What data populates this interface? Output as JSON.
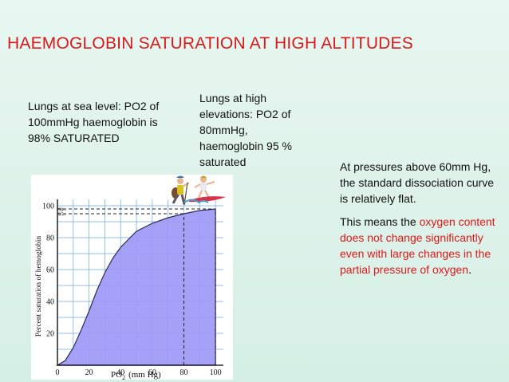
{
  "slide": {
    "title": "HAEMOGLOBIN SATURATION AT HIGH ALTITUDES",
    "note_sea_level": "Lungs at sea level: PO2 of 100mmHg haemoglobin is 98% SATURATED",
    "note_high_elevation": "Lungs at high elevations: PO2 of 80mmHg, haemoglobin 95 % saturated",
    "right_text": {
      "paragraph1": "At pressures above 60mm Hg, the standard dissociation curve is relatively flat.",
      "p2_start": "This means the ",
      "p2_red": "oxygen content does not change significantly even with large changes in the partial pressure of oxygen",
      "p2_end": "."
    }
  },
  "colors": {
    "title": "#d81a1a",
    "highlight": "#e01818",
    "curve_fill": "#9f9cf6",
    "grid": "#6aa6e6"
  },
  "icons": [
    "hiker-figure-icon",
    "surfer-figure-icon"
  ],
  "chart_data": {
    "type": "area",
    "ylabel": "Percent saturation of hemoglobin",
    "xlabel_main": "PO",
    "xlabel_sub": "2",
    "xlabel_unit": "(mm Hg)",
    "x_ticks": [
      "0",
      "20",
      "40",
      "60",
      "80",
      "100"
    ],
    "y_ticks": [
      "20",
      "40",
      "60",
      "80",
      "100"
    ],
    "marker_labels": [
      "98",
      "95"
    ],
    "xlim": [
      0,
      105
    ],
    "ylim": [
      0,
      104
    ],
    "grid": true,
    "points": [
      {
        "x": 0,
        "y": 0
      },
      {
        "x": 5,
        "y": 3
      },
      {
        "x": 10,
        "y": 11
      },
      {
        "x": 15,
        "y": 22
      },
      {
        "x": 20,
        "y": 34
      },
      {
        "x": 25,
        "y": 47
      },
      {
        "x": 30,
        "y": 58
      },
      {
        "x": 35,
        "y": 67
      },
      {
        "x": 40,
        "y": 74
      },
      {
        "x": 50,
        "y": 84
      },
      {
        "x": 60,
        "y": 89
      },
      {
        "x": 70,
        "y": 92.5
      },
      {
        "x": 80,
        "y": 95
      },
      {
        "x": 90,
        "y": 97
      },
      {
        "x": 100,
        "y": 98
      }
    ],
    "reference_points": [
      {
        "x": 80,
        "y": 95
      },
      {
        "x": 100,
        "y": 98
      }
    ]
  }
}
